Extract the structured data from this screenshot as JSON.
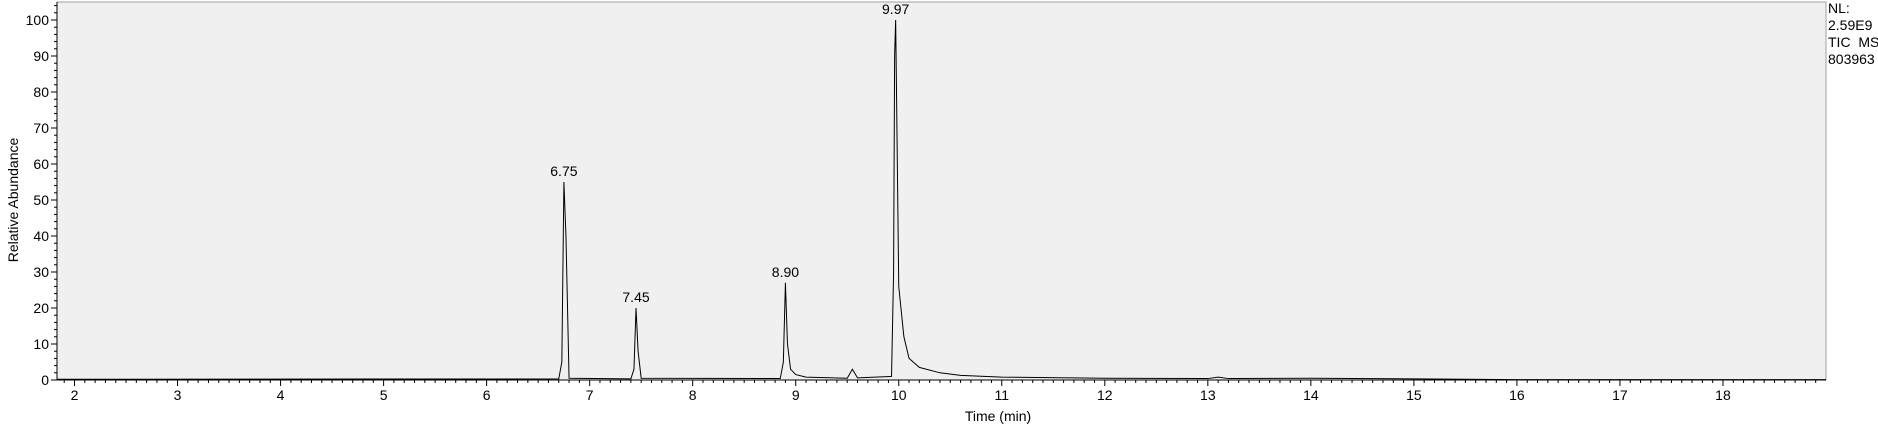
{
  "chart_data": {
    "type": "line",
    "x_label": "Time (min)",
    "y_label": "Relative Abundance",
    "info": [
      "NL:",
      "2.59E9",
      "TIC  MS",
      "803963"
    ],
    "xlim": [
      1.83,
      19.0
    ],
    "ylim": [
      0,
      105
    ],
    "xticks": [
      2,
      3,
      4,
      5,
      6,
      7,
      8,
      9,
      10,
      11,
      12,
      13,
      14,
      15,
      16,
      17,
      18
    ],
    "yticks": [
      0,
      10,
      20,
      30,
      40,
      50,
      60,
      70,
      80,
      90,
      100
    ],
    "series": [
      {
        "color": "#000000",
        "x": [
          1.83,
          6.7,
          6.73,
          6.75,
          6.77,
          6.8,
          7.4,
          7.43,
          7.45,
          7.47,
          7.5,
          8.85,
          8.88,
          8.9,
          8.92,
          8.95,
          9.0,
          9.1,
          9.5,
          9.55,
          9.6,
          9.93,
          9.95,
          9.96,
          9.97,
          9.98,
          10.0,
          10.05,
          10.1,
          10.2,
          10.4,
          10.6,
          11,
          12,
          13,
          13.1,
          13.2,
          14,
          15,
          16,
          19.0
        ],
        "values": [
          0.2,
          0.3,
          5,
          55,
          40,
          0.5,
          0.3,
          3,
          20,
          8,
          0.5,
          0.4,
          5,
          27,
          10,
          3,
          1.5,
          0.8,
          0.5,
          3,
          0.6,
          1,
          30,
          90,
          100,
          76,
          26,
          12,
          6,
          3.5,
          2,
          1.3,
          0.8,
          0.5,
          0.4,
          0.8,
          0.4,
          0.5,
          0.3,
          0.1,
          0.1
        ]
      }
    ],
    "annotations": [
      {
        "text": "6.75",
        "x": 6.75,
        "y": 55
      },
      {
        "text": "7.45",
        "x": 7.45,
        "y": 20
      },
      {
        "text": "8.90",
        "x": 8.9,
        "y": 27
      },
      {
        "text": "9.97",
        "x": 9.97,
        "y": 100
      }
    ]
  }
}
